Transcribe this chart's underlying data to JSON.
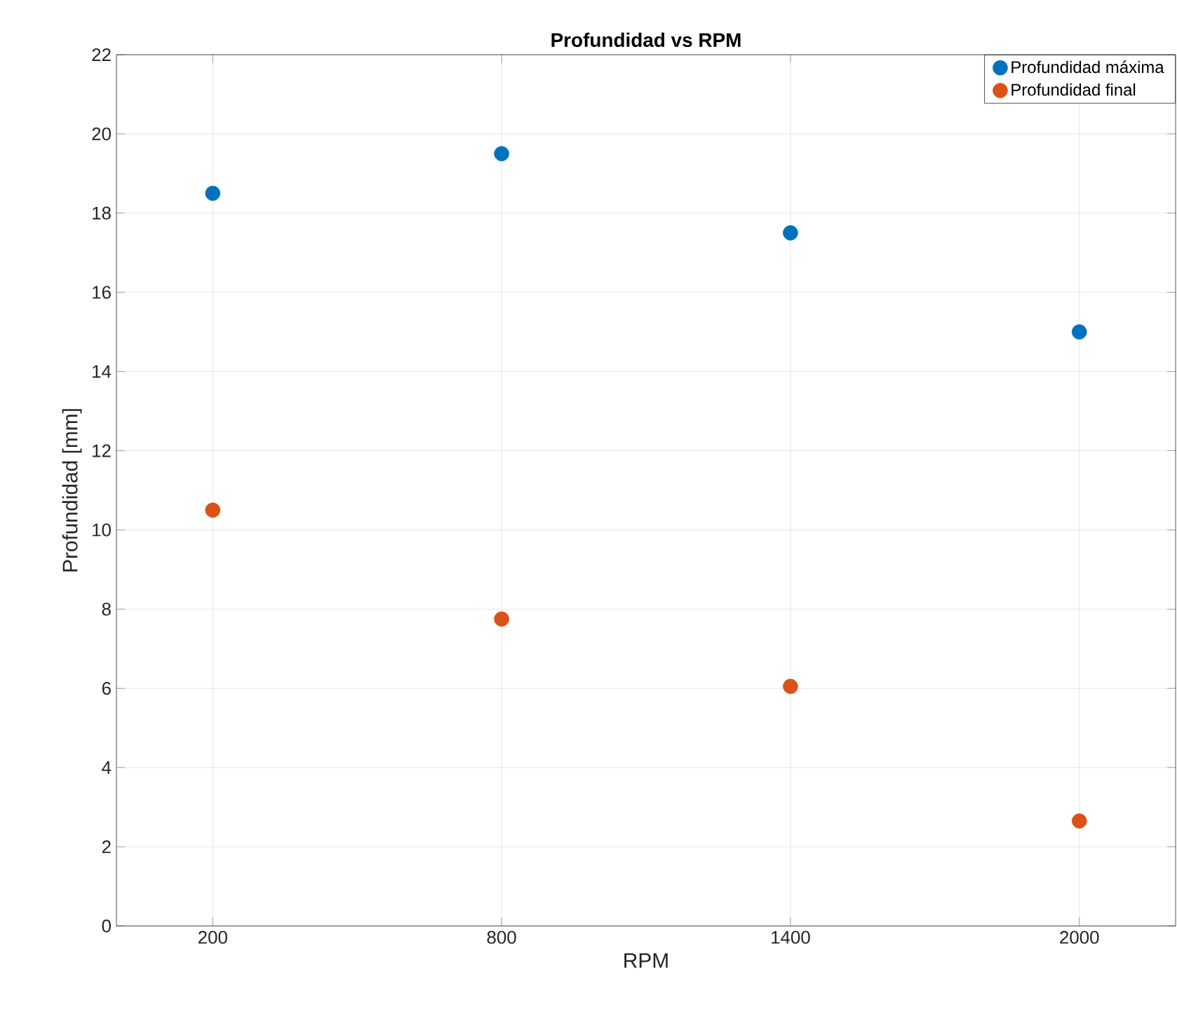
{
  "chart_data": {
    "type": "scatter",
    "title": "Profundidad vs RPM",
    "xlabel": "RPM",
    "ylabel": "Profundidad [mm]",
    "x": [
      200,
      800,
      1400,
      2000
    ],
    "series": [
      {
        "name": "Profundidad máxima",
        "color": "#0072bd",
        "values": [
          18.5,
          19.5,
          17.5,
          15
        ]
      },
      {
        "name": "Profundidad final",
        "color": "#d95319",
        "values": [
          10.5,
          7.75,
          6.05,
          2.65
        ]
      }
    ],
    "xlim": [
      0,
      2200
    ],
    "xticks": [
      200,
      800,
      1400,
      2000
    ],
    "ylim": [
      0,
      22
    ],
    "yticks": [
      0,
      2,
      4,
      6,
      8,
      10,
      12,
      14,
      16,
      18,
      20,
      22
    ],
    "grid": true,
    "legend": "top right",
    "marker": "circle"
  }
}
